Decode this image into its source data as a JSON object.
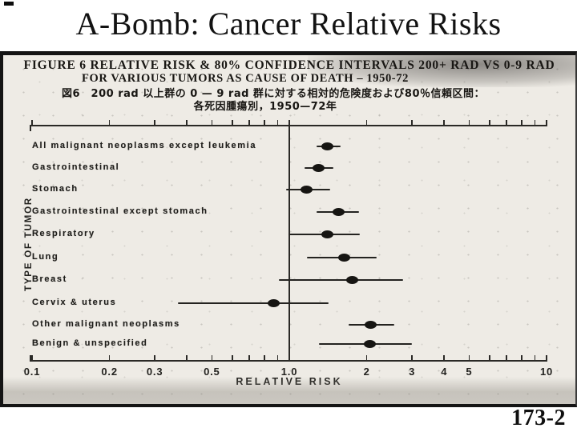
{
  "slide": {
    "title": "A-Bomb: Cancer Relative Risks",
    "page_number": "173-2"
  },
  "figure": {
    "caption_line1": "FIGURE 6  RELATIVE RISK & 80% CONFIDENCE INTERVALS 200+ RAD VS 0-9 RAD",
    "caption_line2": "FOR VARIOUS TUMORS AS CAUSE OF DEATH – 1950-72",
    "caption_jp_line1": "図6　200 rad 以上群の 0 — 9 rad 群に対する相対的危険度および80％信頼区間：",
    "caption_jp_line2": "各死因腫瘍別，1950—72年"
  },
  "chart_data": {
    "type": "scatter",
    "subtype": "forest-plot",
    "title": "FIGURE 6 RELATIVE RISK & 80% CONFIDENCE INTERVALS 200+ RAD VS 0-9 RAD FOR VARIOUS TUMORS AS CAUSE OF DEATH - 1950-72",
    "xlabel": "RELATIVE RISK",
    "ylabel": "TYPE OF TUMOR",
    "x_scale": "log",
    "xlim": [
      0.1,
      10
    ],
    "reference_line": 1.0,
    "x_ticks_labeled": [
      0.1,
      0.2,
      0.3,
      0.5,
      1.0,
      2,
      3,
      4,
      5,
      10
    ],
    "x_tick_labels": [
      "0.1",
      "0.2",
      "0.3",
      "0.5",
      "1.0",
      "2",
      "3",
      "4",
      "5",
      "10"
    ],
    "ci_level": "80%",
    "rows": [
      {
        "label": "All malignant neoplasms except leukemia",
        "rr": 1.41,
        "ci_low": 1.28,
        "ci_high": 1.58
      },
      {
        "label": "Gastrointestinal",
        "rr": 1.3,
        "ci_low": 1.15,
        "ci_high": 1.48
      },
      {
        "label": "Stomach",
        "rr": 1.17,
        "ci_low": 0.97,
        "ci_high": 1.44
      },
      {
        "label": "Gastrointestinal except stomach",
        "rr": 1.56,
        "ci_low": 1.28,
        "ci_high": 1.87
      },
      {
        "label": "Respiratory",
        "rr": 1.41,
        "ci_low": 0.99,
        "ci_high": 1.88
      },
      {
        "label": "Lung",
        "rr": 1.64,
        "ci_low": 1.17,
        "ci_high": 2.19
      },
      {
        "label": "Breast",
        "rr": 1.76,
        "ci_low": 0.91,
        "ci_high": 2.77
      },
      {
        "label": "Cervix & uterus",
        "rr": 0.87,
        "ci_low": 0.37,
        "ci_high": 1.42
      },
      {
        "label": "Other malignant neoplasms",
        "rr": 2.07,
        "ci_low": 1.7,
        "ci_high": 2.56
      },
      {
        "label": "Benign & unspecified",
        "rr": 2.05,
        "ci_low": 1.3,
        "ci_high": 3.0
      }
    ]
  }
}
